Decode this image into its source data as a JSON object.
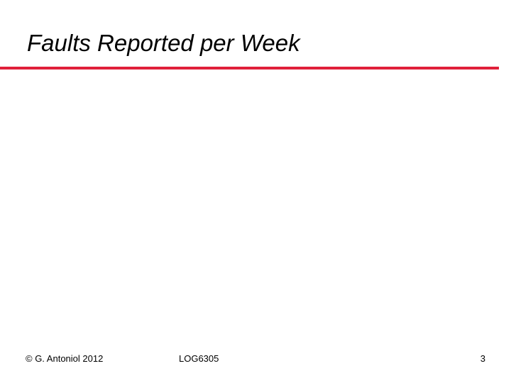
{
  "header": {
    "title": "Faults Reported per Week"
  },
  "footer": {
    "copyright": "© G. Antoniol 2012",
    "course": "LOG6305",
    "page": "3"
  }
}
